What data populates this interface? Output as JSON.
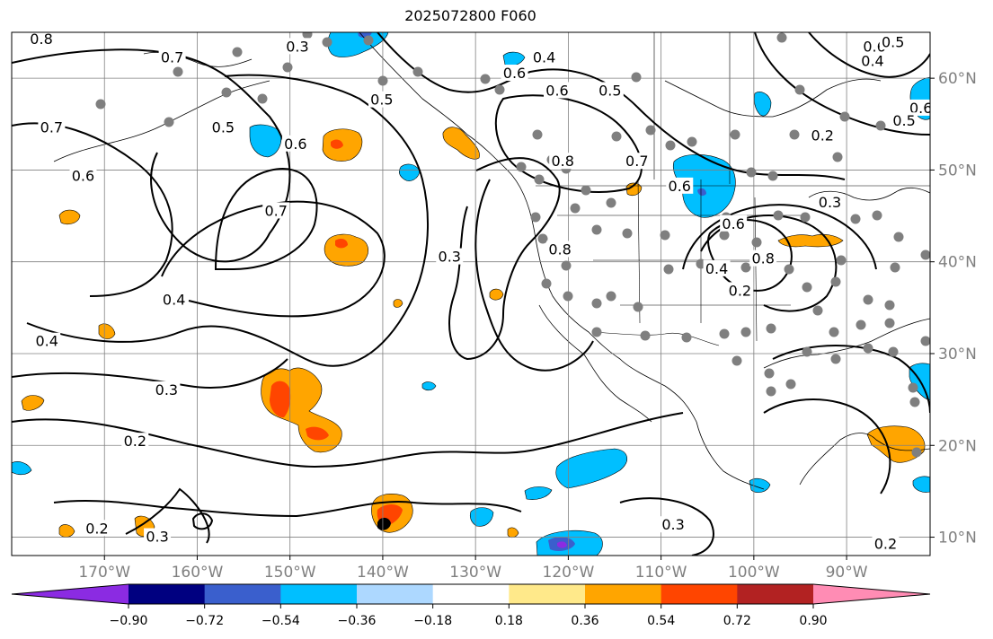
{
  "title": "2025072800 F060",
  "map": {
    "lon_range": [
      -180,
      -81
    ],
    "lat_range": [
      8,
      65
    ],
    "lon_ticks": [
      -170,
      -160,
      -150,
      -140,
      -130,
      -120,
      -110,
      -100,
      -90
    ],
    "lon_labels": [
      "170°W",
      "160°W",
      "150°W",
      "140°W",
      "130°W",
      "120°W",
      "110°W",
      "100°W",
      "90°W"
    ],
    "lat_ticks": [
      10,
      20,
      30,
      40,
      50,
      60
    ],
    "lat_labels": [
      "10°N",
      "20°N",
      "30°N",
      "40°N",
      "50°N",
      "60°N"
    ],
    "grid": true,
    "tick_label_color": "#7f7f7f"
  },
  "contour_labels": [
    {
      "text": "0.8",
      "lon": -176.8,
      "lat": 64.2
    },
    {
      "text": "0.7",
      "lon": -162.7,
      "lat": 62.2
    },
    {
      "text": "0.7",
      "lon": -175.7,
      "lat": 54.6
    },
    {
      "text": "0.6",
      "lon": -172.3,
      "lat": 49.3
    },
    {
      "text": "0.5",
      "lon": -157.2,
      "lat": 54.6
    },
    {
      "text": "0.6",
      "lon": -149.4,
      "lat": 52.8
    },
    {
      "text": "0.7",
      "lon": -151.5,
      "lat": 45.5
    },
    {
      "text": "0.5",
      "lon": -140.1,
      "lat": 57.6
    },
    {
      "text": "0.6",
      "lon": -125.8,
      "lat": 60.5
    },
    {
      "text": "0.4",
      "lon": -122.6,
      "lat": 62.2
    },
    {
      "text": "0.6",
      "lon": -121.2,
      "lat": 58.6
    },
    {
      "text": "0.5",
      "lon": -115.5,
      "lat": 58.6
    },
    {
      "text": "0.7",
      "lon": -112.6,
      "lat": 50.9
    },
    {
      "text": "0.8",
      "lon": -120.6,
      "lat": 50.9
    },
    {
      "text": "0.8",
      "lon": -120.9,
      "lat": 41.3
    },
    {
      "text": "0.6",
      "lon": -108.0,
      "lat": 48.2
    },
    {
      "text": "0.6",
      "lon": -102.2,
      "lat": 44.1
    },
    {
      "text": "0.8",
      "lon": -99.0,
      "lat": 40.3
    },
    {
      "text": "0.4",
      "lon": -104.0,
      "lat": 39.2
    },
    {
      "text": "0.2",
      "lon": -101.5,
      "lat": 36.8
    },
    {
      "text": "0.3",
      "lon": -132.8,
      "lat": 40.5
    },
    {
      "text": "0.4",
      "lon": -162.5,
      "lat": 35.8
    },
    {
      "text": "0.4",
      "lon": -176.2,
      "lat": 31.3
    },
    {
      "text": "0.3",
      "lon": -163.3,
      "lat": 26.0
    },
    {
      "text": "0.2",
      "lon": -166.7,
      "lat": 20.4
    },
    {
      "text": "0.2",
      "lon": -170.8,
      "lat": 10.9
    },
    {
      "text": "0.3",
      "lon": -164.3,
      "lat": 10.0
    },
    {
      "text": "0.3",
      "lon": -108.7,
      "lat": 11.3
    },
    {
      "text": "0.3",
      "lon": -149.2,
      "lat": 63.4
    },
    {
      "text": "0.2",
      "lon": -92.6,
      "lat": 53.7
    },
    {
      "text": "0.6",
      "lon": -87.0,
      "lat": 63.4
    },
    {
      "text": "0.5",
      "lon": -85.0,
      "lat": 63.9
    },
    {
      "text": "0.4",
      "lon": -87.2,
      "lat": 61.8
    },
    {
      "text": "0.6",
      "lon": -82.0,
      "lat": 56.7
    },
    {
      "text": "0.5",
      "lon": -83.8,
      "lat": 55.3
    },
    {
      "text": "0.2",
      "lon": -85.8,
      "lat": 9.2
    },
    {
      "text": "0.3",
      "lon": -91.8,
      "lat": 46.4
    }
  ],
  "colorbar": {
    "colors": [
      "#8b2be2",
      "#000080",
      "#3a5fcd",
      "#00bfff",
      "#add8ff",
      "#ffffff",
      "#ffe98a",
      "#ffa500",
      "#ff4500",
      "#b22222",
      "#ff8cb4"
    ],
    "tick_labels": [
      "−0.90",
      "−0.72",
      "−0.54",
      "−0.36",
      "−0.18",
      "0.18",
      "0.36",
      "0.54",
      "0.72",
      "0.90"
    ]
  }
}
